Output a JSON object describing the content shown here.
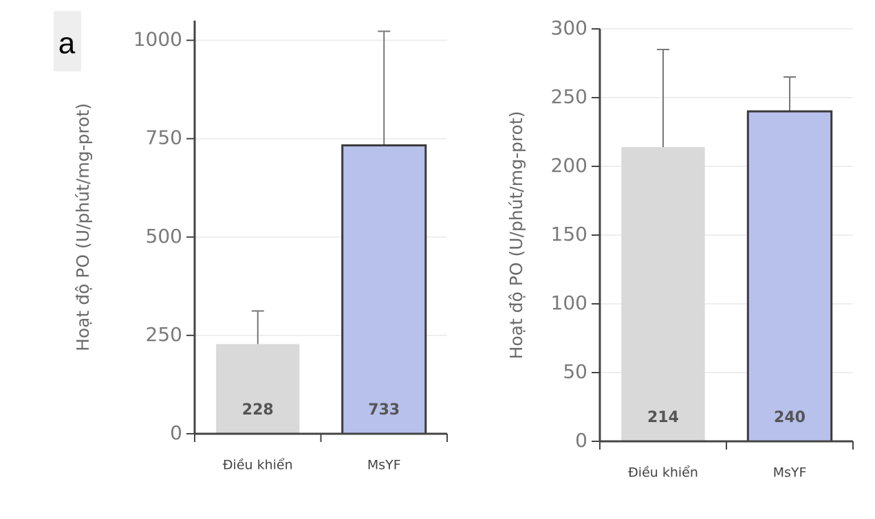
{
  "panel_label": "a",
  "chart_data": [
    {
      "type": "bar",
      "y_label": "Hoạt độ PO (U/phút/mg-prot)",
      "categories": [
        "Điều khiển",
        "MsYF"
      ],
      "values": [
        228,
        733
      ],
      "errors": [
        84,
        290
      ],
      "colors": [
        "#d9d9d9",
        "#b8c0ec"
      ],
      "edgecolors": [
        null,
        "#3a3a3a"
      ],
      "ylim": [
        0,
        1050
      ],
      "yticks": [
        0,
        250,
        500,
        750,
        1000
      ],
      "grid": true
    },
    {
      "type": "bar",
      "y_label": "Hoạt độ PO (U/phút/mg-prot)",
      "categories": [
        "Điều khiển",
        "MsYF"
      ],
      "values": [
        214,
        240
      ],
      "errors": [
        71,
        25
      ],
      "colors": [
        "#d9d9d9",
        "#b8c0ec"
      ],
      "edgecolors": [
        null,
        "#3a3a3a"
      ],
      "ylim": [
        0,
        300
      ],
      "yticks": [
        0,
        50,
        100,
        150,
        200,
        250,
        300
      ],
      "grid": true
    }
  ]
}
